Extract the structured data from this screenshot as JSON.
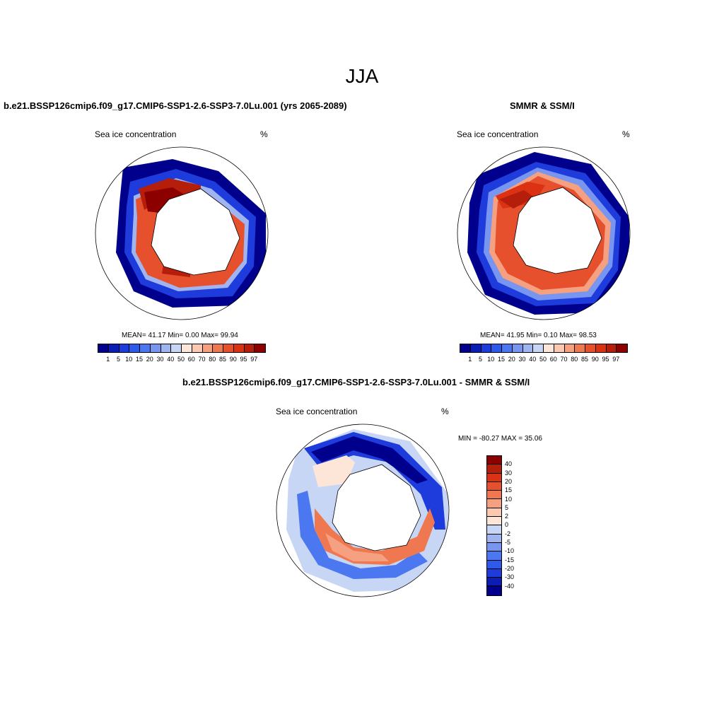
{
  "season": "JJA",
  "titles": {
    "model": "b.e21.BSSP126cmip6.f09_g17.CMIP6-SSP1-2.6-SSP3-7.0Lu.001 (yrs 2065-2089)",
    "obs": "SMMR & SSM/I",
    "diff": "b.e21.BSSP126cmip6.f09_g17.CMIP6-SSP1-2.6-SSP3-7.0Lu.001 - SMMR & SSM/I"
  },
  "panels": {
    "model": {
      "variable": "Sea ice concentration",
      "units": "%",
      "stats": "MEAN=  41.17  Min=   0.00  Max=  99.94"
    },
    "obs": {
      "variable": "Sea ice concentration",
      "units": "%",
      "stats": "MEAN=  41.95  Min=   0.10  Max=  98.53"
    },
    "diff": {
      "variable": "Sea ice concentration",
      "units": "%",
      "stats": "MIN = -80.27 MAX =  35.06"
    }
  },
  "colorbars": {
    "abs_ticks": [
      "1",
      "5",
      "10",
      "15",
      "20",
      "30",
      "40",
      "50",
      "60",
      "70",
      "80",
      "85",
      "90",
      "95",
      "97"
    ],
    "abs_colors": [
      "#00008c",
      "#0a1eb4",
      "#1e3cdc",
      "#2d5aeb",
      "#4b78f0",
      "#7896f0",
      "#a0b4f0",
      "#c8d6f5",
      "#fde6d8",
      "#fbc8b0",
      "#f5a080",
      "#f07850",
      "#e6502d",
      "#dc3214",
      "#b41e0a",
      "#8c0000"
    ],
    "diff_ticks": [
      "40",
      "30",
      "20",
      "15",
      "10",
      "5",
      "2",
      "0",
      "-2",
      "-5",
      "-10",
      "-15",
      "-20",
      "-30",
      "-40"
    ],
    "diff_colors": [
      "#8c0000",
      "#b41e0a",
      "#dc3214",
      "#e6502d",
      "#f07850",
      "#f5a080",
      "#fbc8b0",
      "#fde6d8",
      "#c8d6f5",
      "#a0b4f0",
      "#7896f0",
      "#4b78f0",
      "#2d5aeb",
      "#1e3cdc",
      "#0a1eb4",
      "#00008c"
    ]
  }
}
